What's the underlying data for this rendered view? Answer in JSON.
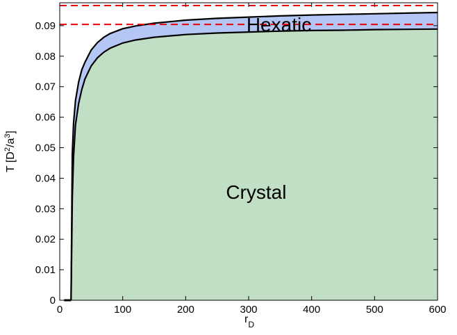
{
  "chart_data": {
    "type": "area",
    "xlabel": "r_D",
    "ylabel": "T  [D^2/a^3]",
    "xlim": [
      0,
      600
    ],
    "ylim": [
      0,
      0.0975
    ],
    "xticks": [
      0,
      100,
      200,
      300,
      400,
      500,
      600
    ],
    "yticks": [
      0,
      0.01,
      0.02,
      0.03,
      0.04,
      0.05,
      0.06,
      0.07,
      0.08,
      0.09
    ],
    "xtick_labels": [
      "0",
      "100",
      "200",
      "300",
      "400",
      "500",
      "600"
    ],
    "ytick_labels": [
      "0",
      "0.01",
      "0.02",
      "0.03",
      "0.04",
      "0.05",
      "0.06",
      "0.07",
      "0.08",
      "0.09"
    ],
    "grid": false,
    "x": [
      18,
      20,
      22,
      25,
      30,
      35,
      40,
      50,
      60,
      70,
      80,
      100,
      120,
      150,
      200,
      250,
      300,
      350,
      400,
      450,
      500,
      550,
      600
    ],
    "series": [
      {
        "values": [
          0.0,
          0.0335,
          0.047,
          0.0575,
          0.0645,
          0.069,
          0.0725,
          0.0768,
          0.0795,
          0.0813,
          0.0826,
          0.0843,
          0.0853,
          0.0862,
          0.0871,
          0.0876,
          0.0879,
          0.0882,
          0.0884,
          0.0885,
          0.0887,
          0.0888,
          0.0889
        ],
        "color": "#c1dfc4"
      },
      {
        "values": [
          0.0,
          0.048,
          0.058,
          0.0655,
          0.0715,
          0.0755,
          0.078,
          0.082,
          0.0845,
          0.0862,
          0.0874,
          0.089,
          0.0899,
          0.0908,
          0.0918,
          0.0924,
          0.0928,
          0.0932,
          0.0935,
          0.0937,
          0.0939,
          0.0941,
          0.0943
        ],
        "color": "#b4c6f4"
      }
    ],
    "floor_segment": {
      "x": [
        7,
        18
      ],
      "y": 0.0
    },
    "reference_lines": [
      {
        "y": 0.0966,
        "color": "#e8000b",
        "style": "dashed"
      },
      {
        "y": 0.0904,
        "color": "#e8000b",
        "style": "dashed"
      }
    ],
    "annotations": [
      {
        "text": "Hexatic",
        "x": 348,
        "y": 0.0904
      },
      {
        "text": "Crystal",
        "x": 312,
        "y": 0.0355
      }
    ]
  }
}
